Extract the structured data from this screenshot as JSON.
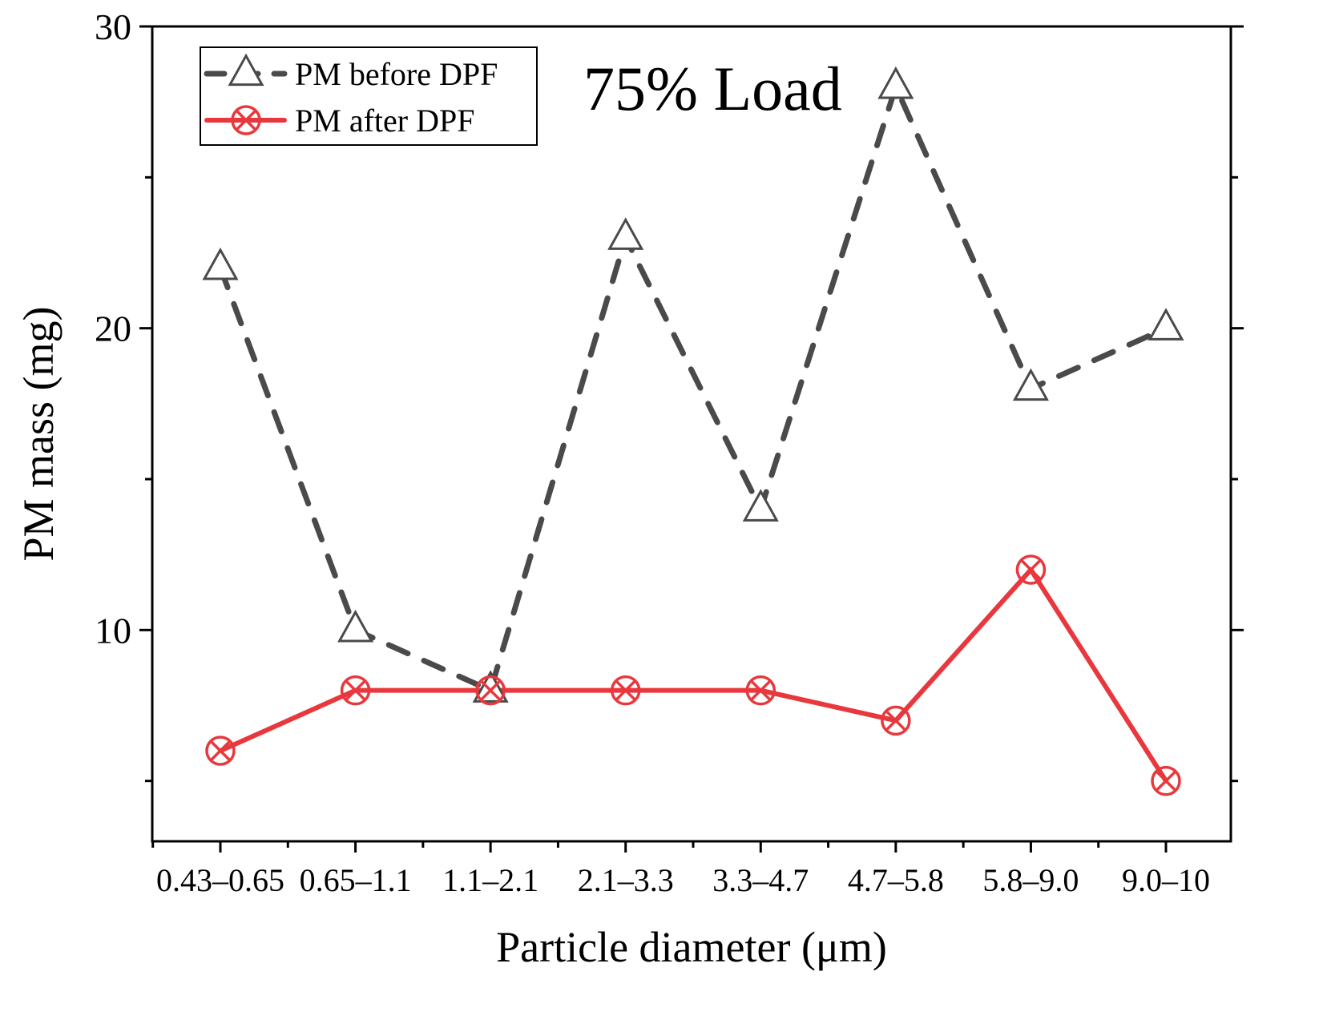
{
  "chart_data": {
    "type": "line",
    "title": "",
    "annotation": "75% Load",
    "xlabel": "Particle diameter (μm)",
    "ylabel": "PM mass (mg)",
    "categories": [
      "0.43–0.65",
      "0.65–1.1",
      "1.1–2.1",
      "2.1–3.3",
      "3.3–4.7",
      "4.7–5.8",
      "5.8–9.0",
      "9.0–10"
    ],
    "ylim": [
      3,
      30
    ],
    "yticks": [
      10,
      20,
      30
    ],
    "legend_position": "top-left",
    "series": [
      {
        "name": "PM before DPF",
        "marker": "triangle",
        "line_style": "dashed",
        "color": "#4a4a4a",
        "values": [
          22,
          10,
          8,
          23,
          14,
          28,
          18,
          20
        ]
      },
      {
        "name": "PM after DPF",
        "marker": "circle-x",
        "line_style": "solid",
        "color": "#e8383d",
        "values": [
          6,
          8,
          8,
          8,
          8,
          7,
          12,
          5
        ]
      }
    ]
  }
}
